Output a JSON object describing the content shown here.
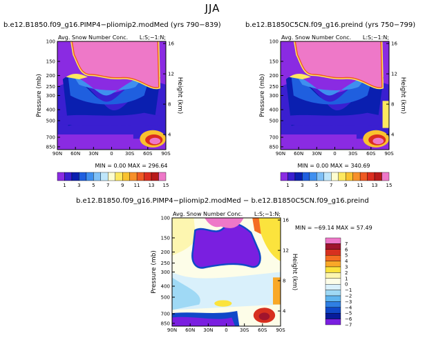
{
  "figure_title": "JJA",
  "chart_data": [
    {
      "type": "heatmap",
      "title": "b.e12.B1850.f09_g16.PIMP4−pliomip2.modMed (yrs 790−839)",
      "subtitle_left": "Avg. Snow Number Conc.",
      "subtitle_right": "L:S;−1:N;",
      "xlabel": "",
      "ylabel": "Pressure (mb)",
      "y2label": "Height (km)",
      "x_ticks": [
        "90N",
        "60N",
        "30N",
        "0",
        "30S",
        "60S",
        "90S"
      ],
      "y_ticks": [
        "100",
        "150",
        "200",
        "250",
        "300",
        "400",
        "500",
        "700",
        "850"
      ],
      "y2_ticks": [
        "16",
        "12",
        "8",
        "4"
      ],
      "ylim": [
        1000,
        100
      ],
      "stats": {
        "min_label": "MIN =",
        "min": "0.00",
        "max_label": "MAX =",
        "max": "296.64"
      },
      "colorbar_levels": [
        "1",
        "3",
        "5",
        "7",
        "9",
        "11",
        "13",
        "15"
      ]
    },
    {
      "type": "heatmap",
      "title": "b.e12.B1850C5CN.f09_g16.preind (yrs 750−799)",
      "subtitle_left": "Avg. Snow Number Conc.",
      "subtitle_right": "L:S;−1:N;",
      "xlabel": "",
      "ylabel": "Pressure (mb)",
      "y2label": "Height (km)",
      "x_ticks": [
        "90N",
        "60N",
        "30N",
        "0",
        "30S",
        "60S",
        "90S"
      ],
      "y_ticks": [
        "100",
        "150",
        "200",
        "250",
        "300",
        "400",
        "500",
        "700",
        "850"
      ],
      "y2_ticks": [
        "16",
        "12",
        "8",
        "4"
      ],
      "ylim": [
        1000,
        100
      ],
      "stats": {
        "min_label": "MIN =",
        "min": "0.00",
        "max_label": "MAX =",
        "max": "340.69"
      },
      "colorbar_levels": [
        "1",
        "3",
        "5",
        "7",
        "9",
        "11",
        "13",
        "15"
      ]
    },
    {
      "type": "heatmap",
      "title": "b.e12.B1850.f09_g16.PIMP4−pliomip2.modMed − b.e12.B1850C5CN.f09_g16.preind",
      "subtitle_left": "Avg. Snow Number Conc.",
      "subtitle_right": "L:S;−1:N;",
      "xlabel": "",
      "ylabel": "Pressure (mb)",
      "y2label": "Height (km)",
      "x_ticks": [
        "90N",
        "60N",
        "30N",
        "0",
        "30S",
        "60S",
        "90S"
      ],
      "y_ticks": [
        "100",
        "150",
        "200",
        "250",
        "300",
        "400",
        "500",
        "700",
        "850"
      ],
      "y2_ticks": [
        "16",
        "12",
        "8",
        "4"
      ],
      "ylim": [
        1000,
        100
      ],
      "stats": {
        "min_label": "MIN =",
        "min": "−69.14",
        "max_label": "MAX =",
        "max": "57.49"
      },
      "colorbar_levels": [
        "7",
        "6",
        "5",
        "4",
        "3",
        "2",
        "1",
        "0",
        "−1",
        "−2",
        "−3",
        "−4",
        "−5",
        "−6",
        "−7"
      ]
    }
  ],
  "colors": {
    "abs_palette": [
      "#8a2be2",
      "#3a1fd0",
      "#0a1fb0",
      "#1f5fdf",
      "#3f8fef",
      "#7fc0f7",
      "#bfe6fb",
      "#fdfdd0",
      "#fde85f",
      "#f9c22f",
      "#f7902a",
      "#ef5a23",
      "#db2d1f",
      "#b81a1a",
      "#ee78c8"
    ],
    "diff_palette": [
      "#ee78c8",
      "#a0142d",
      "#d7301f",
      "#f46d21",
      "#f9a828",
      "#fbe33d",
      "#fdf6b0",
      "#fdfde8",
      "#d9f0fb",
      "#9fd9f5",
      "#5fb5ef",
      "#2f7fe3",
      "#1048c8",
      "#071c9a",
      "#7a1fe0"
    ]
  }
}
